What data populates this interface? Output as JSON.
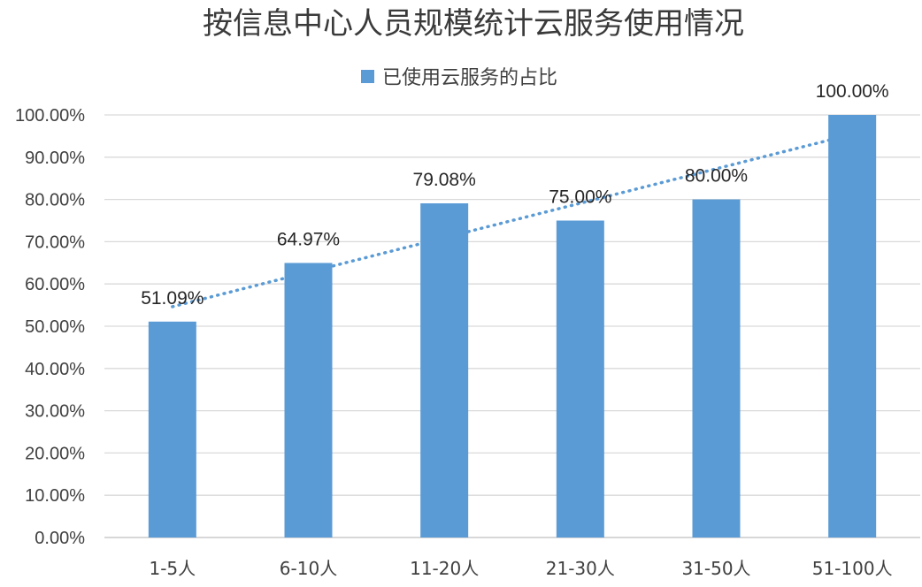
{
  "chart_data": {
    "type": "bar",
    "title": "按信息中心人员规模统计云服务使用情况",
    "categories": [
      "1-5人",
      "6-10人",
      "11-20人",
      "21-30人",
      "31-50人",
      "51-100人"
    ],
    "series": [
      {
        "name": "已使用云服务的占比",
        "values": [
          51.09,
          64.97,
          79.08,
          75.0,
          80.0,
          100.0
        ],
        "data_labels": [
          "51.09%",
          "64.97%",
          "79.08%",
          "75.00%",
          "80.00%",
          "100.00%"
        ],
        "color": "#5b9bd5"
      }
    ],
    "trendline": {
      "type": "linear",
      "style": "dotted",
      "color": "#5b9bd5"
    },
    "y_ticks": [
      "0.00%",
      "10.00%",
      "20.00%",
      "30.00%",
      "40.00%",
      "50.00%",
      "60.00%",
      "70.00%",
      "80.00%",
      "90.00%",
      "100.00%"
    ],
    "ylim": [
      0,
      100
    ],
    "ytick_step": 10,
    "grid": true,
    "legend_position": "top"
  }
}
